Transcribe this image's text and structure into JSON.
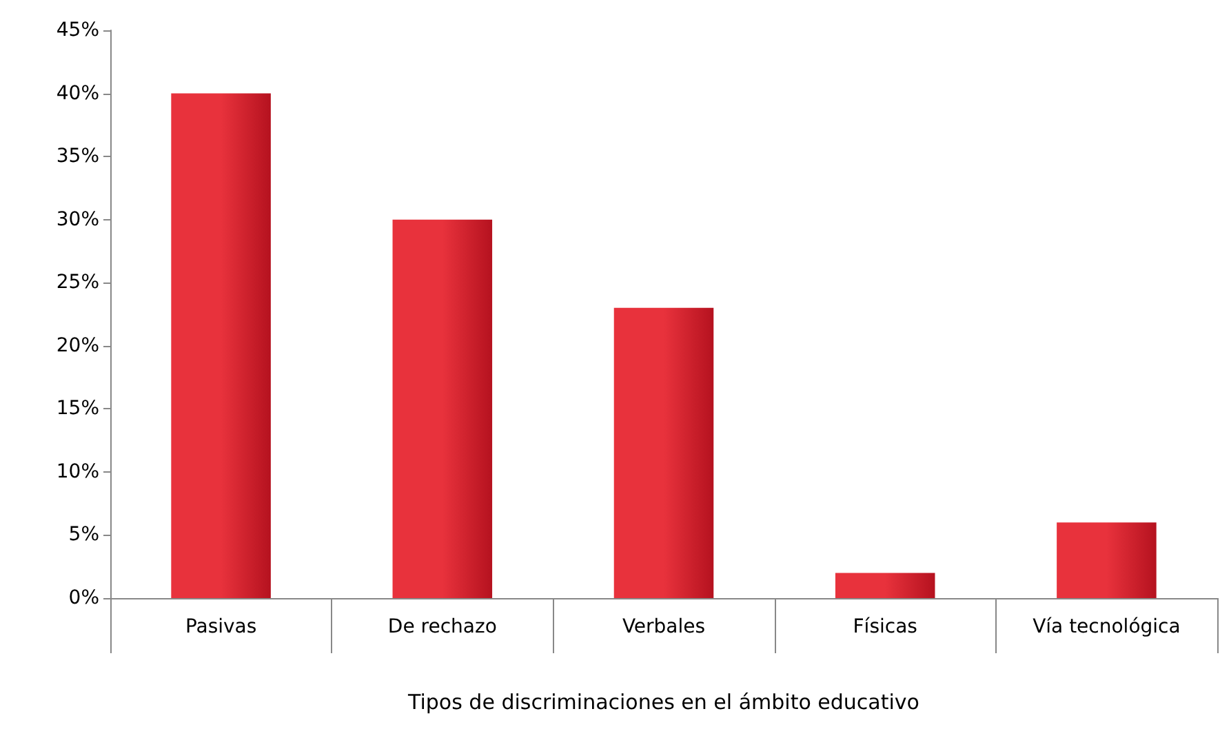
{
  "chart_data": {
    "type": "bar",
    "xlabel": "Tipos de discriminaciones en el ámbito educativo",
    "categories": [
      "Pasivas",
      "De rechazo",
      "Verbales",
      "Físicas",
      "Vía tecnológica"
    ],
    "values": [
      40,
      30,
      23,
      2,
      6
    ],
    "color": "#e8323c",
    "ylim": [
      0,
      45
    ],
    "yticks": [
      {
        "value": 0,
        "label": "0%"
      },
      {
        "value": 5,
        "label": "5%"
      },
      {
        "value": 10,
        "label": "10%"
      },
      {
        "value": 15,
        "label": "15%"
      },
      {
        "value": 20,
        "label": "20%"
      },
      {
        "value": 25,
        "label": "25%"
      },
      {
        "value": 30,
        "label": "30%"
      },
      {
        "value": 35,
        "label": "35%"
      },
      {
        "value": 40,
        "label": "40%"
      },
      {
        "value": 45,
        "label": "45%"
      }
    ],
    "grid": false
  }
}
